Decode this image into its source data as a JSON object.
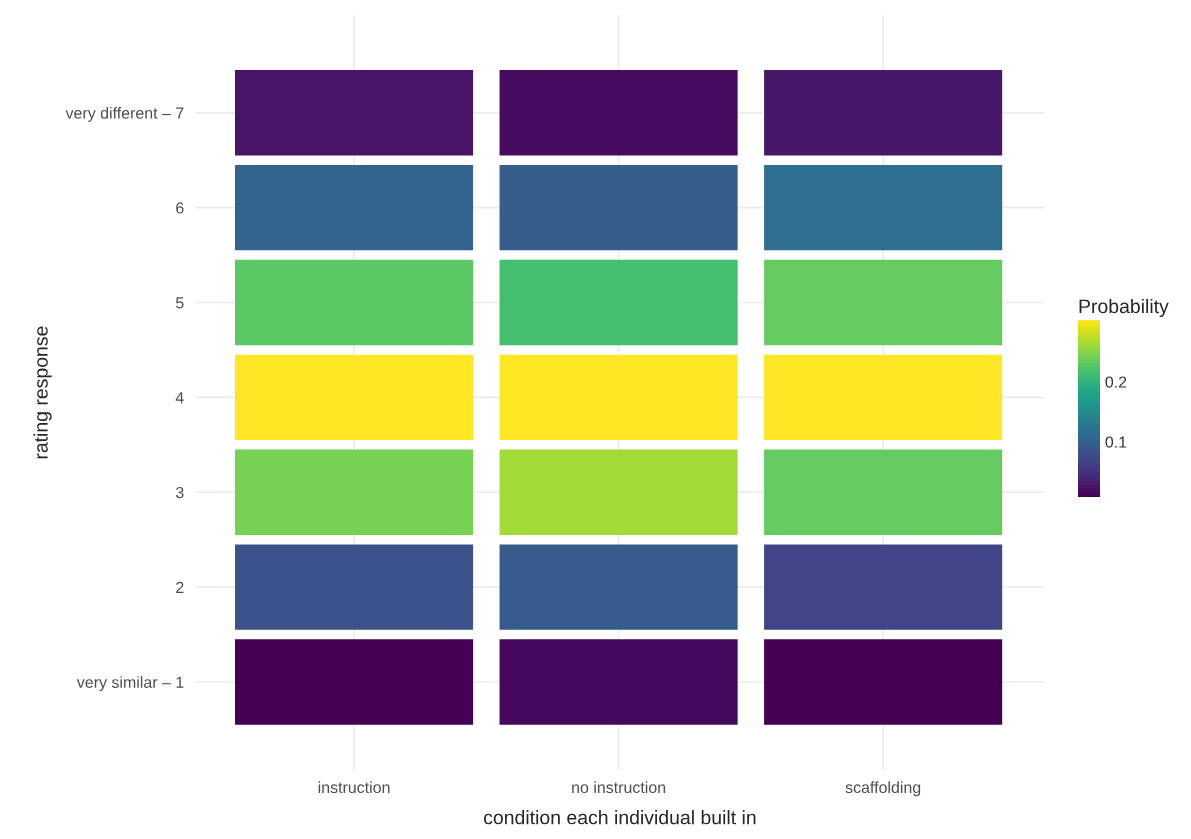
{
  "chart_data": {
    "type": "heatmap",
    "xlabel": "condition each individual built in",
    "ylabel": "rating response",
    "clabel": "Probability",
    "categories": [
      "instruction",
      "no instruction",
      "scaffolding"
    ],
    "y_categories": [
      "very different – 7",
      "6",
      "5",
      "4",
      "3",
      "2",
      "very similar – 1"
    ],
    "cells": [
      [
        0.023,
        0.017,
        0.026
      ],
      [
        0.102,
        0.095,
        0.114
      ],
      [
        0.228,
        0.215,
        0.233
      ],
      [
        0.303,
        0.302,
        0.302
      ],
      [
        0.242,
        0.262,
        0.232
      ],
      [
        0.082,
        0.09,
        0.068
      ],
      [
        0.008,
        0.014,
        0.008
      ]
    ],
    "clim": [
      0.008,
      0.303
    ],
    "cticks": [
      0.1,
      0.2
    ],
    "grid": true
  }
}
